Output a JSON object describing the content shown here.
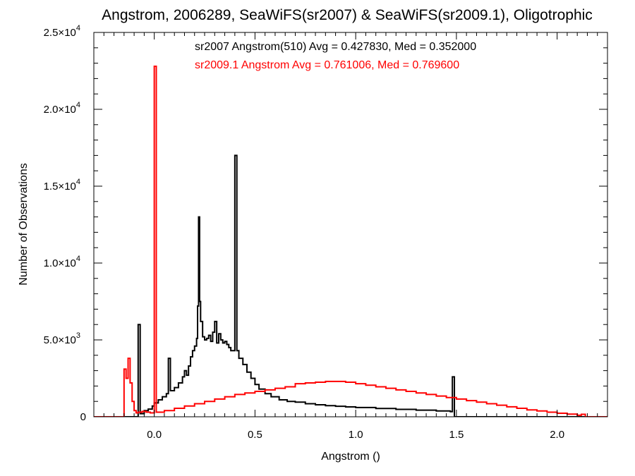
{
  "chart_data": {
    "type": "line",
    "title": "Angstrom, 2006289, SeaWiFS(sr2007) & SeaWiFS(sr2009.1), Oligotrophic",
    "xlabel": "Angstrom ()",
    "ylabel": "Number of Observations",
    "xlim": [
      -0.3,
      2.25
    ],
    "ylim": [
      0,
      25000
    ],
    "x_ticks": [
      {
        "value": 0.0,
        "label": "0.0"
      },
      {
        "value": 0.5,
        "label": "0.5"
      },
      {
        "value": 1.0,
        "label": "1.0"
      },
      {
        "value": 1.5,
        "label": "1.5"
      },
      {
        "value": 2.0,
        "label": "2.0"
      }
    ],
    "y_ticks": [
      {
        "value": 0,
        "mant": "0",
        "exp": ""
      },
      {
        "value": 5000,
        "mant": "5.0×10",
        "exp": "3"
      },
      {
        "value": 10000,
        "mant": "1.0×10",
        "exp": "4"
      },
      {
        "value": 15000,
        "mant": "1.5×10",
        "exp": "4"
      },
      {
        "value": 20000,
        "mant": "2.0×10",
        "exp": "4"
      },
      {
        "value": 25000,
        "mant": "2.5×10",
        "exp": "4"
      }
    ],
    "annotations": [
      {
        "text": "sr2007 Angstrom(510) Avg = 0.427830, Med = 0.352000",
        "color": "#000000"
      },
      {
        "text": "sr2009.1 Angstrom Avg = 0.761006, Med = 0.769600",
        "color": "#ff0000"
      }
    ],
    "series": [
      {
        "color": "#000000",
        "step": true,
        "points": [
          [
            -0.3,
            0
          ],
          [
            -0.09,
            0
          ],
          [
            -0.08,
            6000
          ],
          [
            -0.07,
            200
          ],
          [
            -0.05,
            400
          ],
          [
            -0.03,
            500
          ],
          [
            -0.01,
            700
          ],
          [
            0.0,
            900
          ],
          [
            0.02,
            1100
          ],
          [
            0.04,
            1300
          ],
          [
            0.06,
            1500
          ],
          [
            0.07,
            3800
          ],
          [
            0.08,
            1700
          ],
          [
            0.1,
            1900
          ],
          [
            0.12,
            2200
          ],
          [
            0.14,
            2600
          ],
          [
            0.15,
            3000
          ],
          [
            0.16,
            2700
          ],
          [
            0.17,
            3300
          ],
          [
            0.18,
            3900
          ],
          [
            0.19,
            4300
          ],
          [
            0.2,
            4600
          ],
          [
            0.21,
            5100
          ],
          [
            0.215,
            7200
          ],
          [
            0.22,
            13000
          ],
          [
            0.225,
            7500
          ],
          [
            0.23,
            6200
          ],
          [
            0.24,
            5200
          ],
          [
            0.25,
            5000
          ],
          [
            0.26,
            5100
          ],
          [
            0.27,
            5300
          ],
          [
            0.28,
            4900
          ],
          [
            0.29,
            5500
          ],
          [
            0.3,
            6200
          ],
          [
            0.31,
            4800
          ],
          [
            0.32,
            5400
          ],
          [
            0.33,
            5000
          ],
          [
            0.34,
            4800
          ],
          [
            0.35,
            4900
          ],
          [
            0.36,
            4700
          ],
          [
            0.37,
            4500
          ],
          [
            0.38,
            4300
          ],
          [
            0.4,
            17000
          ],
          [
            0.41,
            4300
          ],
          [
            0.42,
            3800
          ],
          [
            0.44,
            3400
          ],
          [
            0.46,
            2900
          ],
          [
            0.48,
            2500
          ],
          [
            0.5,
            2100
          ],
          [
            0.52,
            1800
          ],
          [
            0.55,
            1500
          ],
          [
            0.58,
            1300
          ],
          [
            0.62,
            1100
          ],
          [
            0.66,
            1000
          ],
          [
            0.7,
            950
          ],
          [
            0.75,
            850
          ],
          [
            0.8,
            780
          ],
          [
            0.85,
            720
          ],
          [
            0.9,
            680
          ],
          [
            0.95,
            640
          ],
          [
            1.0,
            600
          ],
          [
            1.1,
            540
          ],
          [
            1.2,
            480
          ],
          [
            1.3,
            430
          ],
          [
            1.4,
            380
          ],
          [
            1.47,
            330
          ],
          [
            1.48,
            2600
          ],
          [
            1.49,
            0
          ],
          [
            2.25,
            0
          ]
        ]
      },
      {
        "color": "#ff0000",
        "step": true,
        "points": [
          [
            -0.3,
            0
          ],
          [
            -0.16,
            0
          ],
          [
            -0.15,
            3100
          ],
          [
            -0.14,
            2500
          ],
          [
            -0.13,
            3800
          ],
          [
            -0.12,
            2200
          ],
          [
            -0.11,
            1000
          ],
          [
            -0.1,
            400
          ],
          [
            -0.09,
            250
          ],
          [
            -0.08,
            300
          ],
          [
            -0.06,
            350
          ],
          [
            -0.04,
            300
          ],
          [
            -0.02,
            250
          ],
          [
            0.0,
            22800
          ],
          [
            0.01,
            300
          ],
          [
            0.05,
            400
          ],
          [
            0.1,
            550
          ],
          [
            0.15,
            700
          ],
          [
            0.2,
            850
          ],
          [
            0.25,
            1000
          ],
          [
            0.3,
            1150
          ],
          [
            0.35,
            1300
          ],
          [
            0.4,
            1450
          ],
          [
            0.45,
            1550
          ],
          [
            0.5,
            1650
          ],
          [
            0.55,
            1750
          ],
          [
            0.6,
            1850
          ],
          [
            0.65,
            1950
          ],
          [
            0.7,
            2150
          ],
          [
            0.75,
            2200
          ],
          [
            0.8,
            2250
          ],
          [
            0.85,
            2300
          ],
          [
            0.9,
            2300
          ],
          [
            0.95,
            2250
          ],
          [
            1.0,
            2150
          ],
          [
            1.05,
            2050
          ],
          [
            1.1,
            1950
          ],
          [
            1.15,
            1850
          ],
          [
            1.2,
            1750
          ],
          [
            1.25,
            1650
          ],
          [
            1.3,
            1550
          ],
          [
            1.35,
            1450
          ],
          [
            1.4,
            1350
          ],
          [
            1.45,
            1250
          ],
          [
            1.5,
            1150
          ],
          [
            1.55,
            1050
          ],
          [
            1.6,
            950
          ],
          [
            1.65,
            850
          ],
          [
            1.7,
            750
          ],
          [
            1.75,
            650
          ],
          [
            1.8,
            550
          ],
          [
            1.85,
            450
          ],
          [
            1.9,
            380
          ],
          [
            1.95,
            300
          ],
          [
            2.0,
            230
          ],
          [
            2.05,
            170
          ],
          [
            2.1,
            100
          ],
          [
            2.12,
            160
          ],
          [
            2.14,
            0
          ],
          [
            2.25,
            0
          ]
        ]
      }
    ]
  }
}
